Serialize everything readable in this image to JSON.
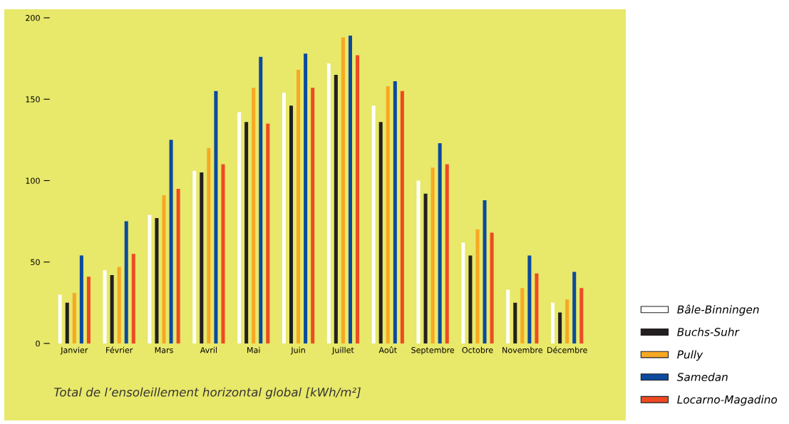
{
  "chart_data": {
    "type": "bar",
    "annotations": [
      "Total de l’ensoleillement horizontal global [kWh/m²]"
    ],
    "categories": [
      "Janvier",
      "Février",
      "Mars",
      "Avril",
      "Mai",
      "Juin",
      "Juillet",
      "Août",
      "Septembre",
      "Octobre",
      "Novembre",
      "Décembre"
    ],
    "series": [
      {
        "name": "Bâle-Binningen",
        "color": "#ffffff",
        "values": [
          30,
          45,
          79,
          106,
          142,
          154,
          172,
          146,
          100,
          62,
          33,
          25
        ]
      },
      {
        "name": "Buchs-Suhr",
        "color": "#231f20",
        "values": [
          25,
          42,
          77,
          105,
          136,
          146,
          165,
          136,
          92,
          54,
          25,
          19
        ]
      },
      {
        "name": "Pully",
        "color": "#f7a823",
        "values": [
          31,
          47,
          91,
          120,
          157,
          168,
          188,
          158,
          108,
          70,
          34,
          27
        ]
      },
      {
        "name": "Samedan",
        "color": "#0b4a9e",
        "values": [
          54,
          75,
          125,
          155,
          176,
          178,
          189,
          161,
          123,
          88,
          54,
          44
        ]
      },
      {
        "name": "Locarno-Magadino",
        "color": "#ef4a23",
        "values": [
          41,
          55,
          95,
          110,
          135,
          157,
          177,
          155,
          110,
          68,
          43,
          34
        ]
      }
    ],
    "ylim": [
      0,
      200
    ],
    "yticks": [
      0,
      50,
      100,
      150,
      200
    ],
    "grid": false,
    "legend": "right"
  }
}
